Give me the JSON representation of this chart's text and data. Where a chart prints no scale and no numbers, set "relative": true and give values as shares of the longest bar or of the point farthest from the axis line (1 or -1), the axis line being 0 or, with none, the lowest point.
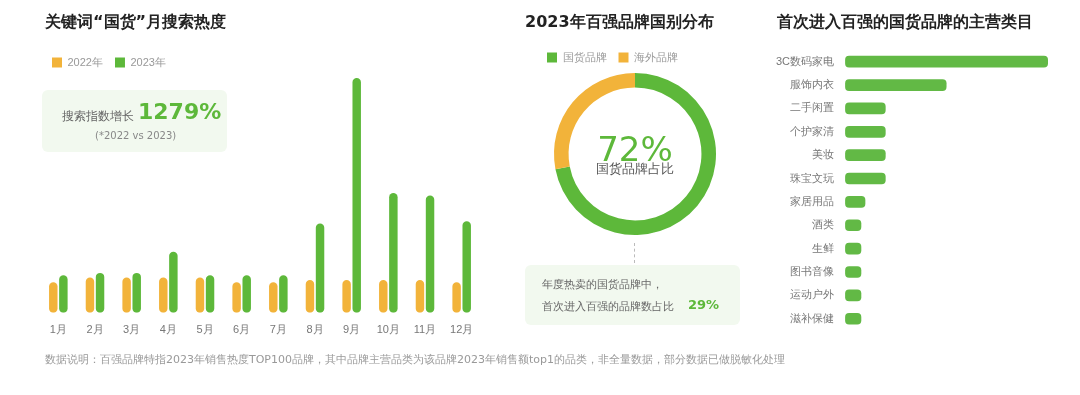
{
  "chart_data": [
    {
      "type": "bar",
      "title": "关键词“国货”月搜索热度",
      "relative": true,
      "tick_labels": "x",
      "grid": false,
      "legend": "top left",
      "categories": [
        "1月",
        "2月",
        "3月",
        "4月",
        "5月",
        "6月",
        "7月",
        "8月",
        "9月",
        "10月",
        "11月",
        "12月"
      ],
      "series": [
        {
          "name": "2022年",
          "color": "#f2b33a",
          "values": [
            0.13,
            0.15,
            0.15,
            0.15,
            0.15,
            0.13,
            0.13,
            0.14,
            0.14,
            0.14,
            0.14,
            0.13
          ]
        },
        {
          "name": "2023年",
          "color": "#5db83a",
          "values": [
            0.16,
            0.17,
            0.17,
            0.26,
            0.16,
            0.16,
            0.16,
            0.38,
            1,
            0.51,
            0.5,
            0.39
          ]
        }
      ],
      "annotations": [
        "搜索指数增长",
        "1279%",
        "(*2022 vs 2023)",
        "数据说明：百强品牌特指2023年销售热度TOP100品牌，其中品牌主营品类为该品牌2023年销售额top1的品类，非全量数据，部分数据已做脱敏化处理"
      ]
    },
    {
      "type": "donut",
      "title": "2023年百强品牌国别分布",
      "legend": "top left",
      "categories": [
        "国货品牌",
        "海外品牌"
      ],
      "values": [
        72,
        28
      ],
      "colors": [
        "#5db83a",
        "#f2b33a"
      ],
      "value_labels": [
        "72%",
        null
      ],
      "annotations": [
        "国货品牌占比",
        "年度热卖的国货品牌中，",
        "首次进入百强的品牌数占比",
        "29%"
      ]
    },
    {
      "type": "bar",
      "orientation": "horizontal",
      "title": "首次进入百强的国货品牌的主营类目",
      "relative": true,
      "tick_labels": "y",
      "grid": false,
      "categories": [
        "3C数码家电",
        "服饰内衣",
        "二手闲置",
        "个护家清",
        "美妆",
        "珠宝文玩",
        "家居用品",
        "酒类",
        "生鲜",
        "图书音像",
        "运动户外",
        "滋补保健"
      ],
      "values": [
        1,
        0.5,
        0.2,
        0.2,
        0.2,
        0.2,
        0.1,
        0.08,
        0.08,
        0.08,
        0.08,
        0.08
      ],
      "color": "#62b945"
    }
  ]
}
